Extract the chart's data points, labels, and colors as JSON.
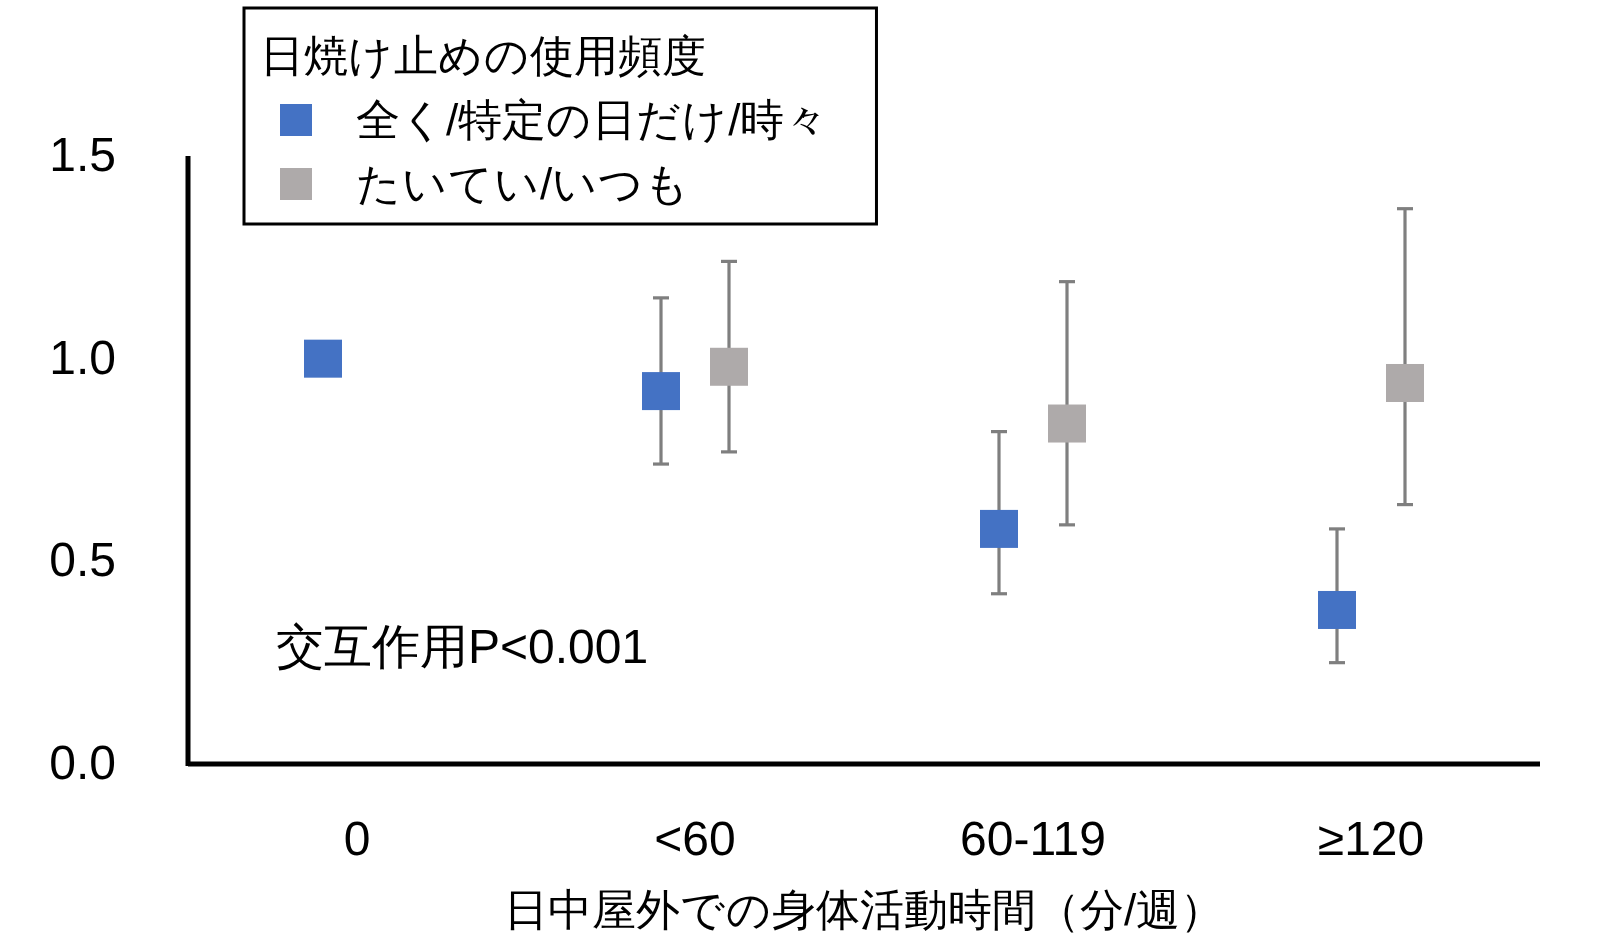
{
  "chart_data": {
    "type": "scatter",
    "xlabel": "日中屋外での身体活動時間（分/週）",
    "categories": [
      "0",
      "<60",
      "60-119",
      "≥120"
    ],
    "series": [
      {
        "name": "全く/特定の日だけ/時々",
        "color": "#4472c4",
        "values": [
          1.0,
          0.92,
          0.58,
          0.38
        ],
        "errors": [
          null,
          [
            0.74,
            1.15
          ],
          [
            0.42,
            0.82
          ],
          [
            0.25,
            0.58
          ]
        ]
      },
      {
        "name": "たいてい/いつも",
        "color": "#aeaaaa",
        "values": [
          null,
          0.98,
          0.84,
          0.94
        ],
        "errors": [
          null,
          [
            0.77,
            1.24
          ],
          [
            0.59,
            1.19
          ],
          [
            0.64,
            1.37
          ]
        ]
      }
    ],
    "legend_title": "日焼け止めの使用頻度",
    "legend": "top left",
    "marker": "square",
    "ylim": [
      0,
      1.5
    ],
    "yticks": [
      {
        "value": 0,
        "label": "0.0"
      },
      {
        "value": 0.5,
        "label": "0.5"
      },
      {
        "value": 1,
        "label": "1.0"
      },
      {
        "value": 1.5,
        "label": "1.5"
      }
    ],
    "annotations": [
      "交互作用P<0.001"
    ]
  }
}
